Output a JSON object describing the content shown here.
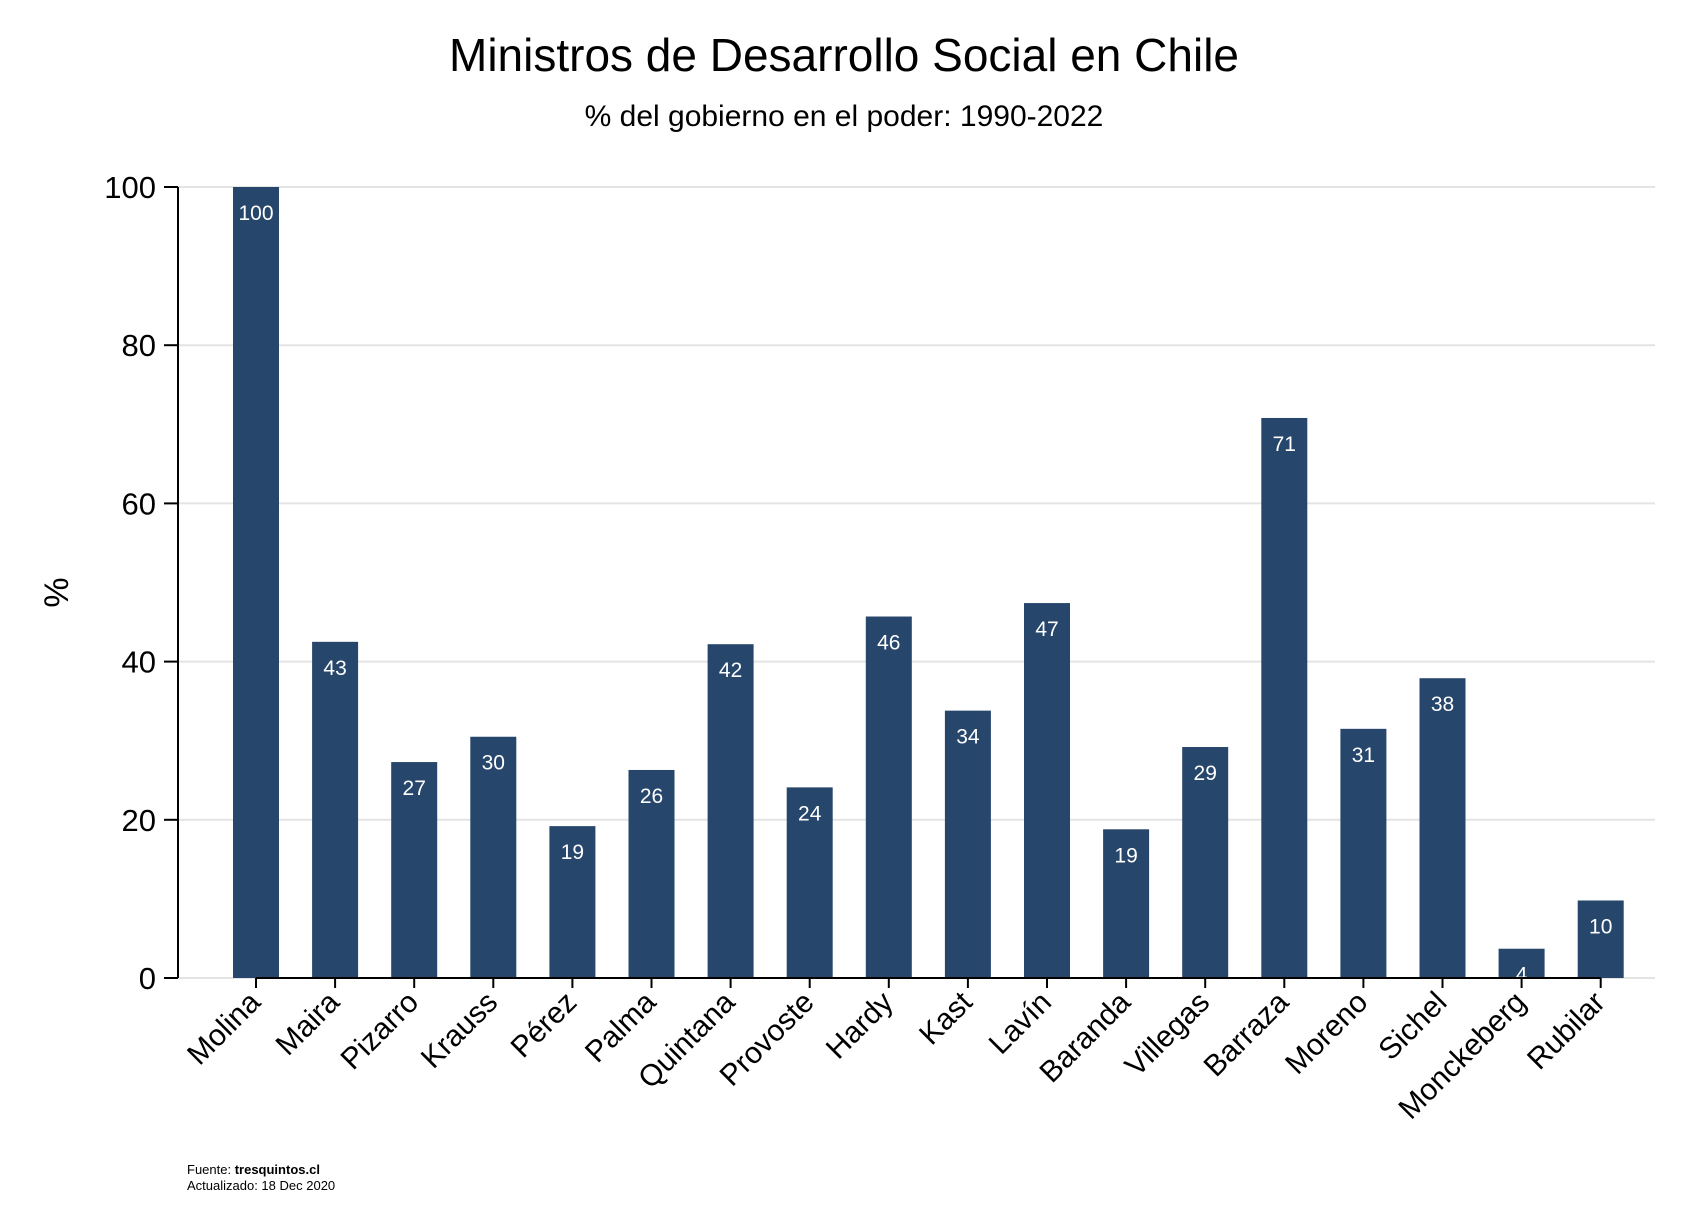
{
  "chart_data": {
    "type": "bar",
    "title": "Ministros de Desarrollo Social en Chile",
    "subtitle": "% del gobierno en el poder: 1990-2022",
    "ylabel": "%",
    "xlabel": "",
    "ylim": [
      0,
      100
    ],
    "yticks": [
      0,
      20,
      40,
      60,
      80,
      100
    ],
    "grid": true,
    "bar_color": "#27466b",
    "categories": [
      "Molina",
      "Maira",
      "Pizarro",
      "Krauss",
      "Pérez",
      "Palma",
      "Quintana",
      "Provoste",
      "Hardy",
      "Kast",
      "Lavín",
      "Baranda",
      "Villegas",
      "Barraza",
      "Moreno",
      "Sichel",
      "Monckeberg",
      "Rubilar"
    ],
    "values": [
      100,
      42.5,
      27.3,
      30.5,
      19.2,
      26.3,
      42.2,
      24.1,
      45.7,
      33.8,
      47.4,
      18.8,
      29.2,
      70.8,
      31.5,
      37.9,
      3.7,
      9.8
    ],
    "data_labels": [
      "100",
      "43",
      "27",
      "30",
      "19",
      "26",
      "42",
      "24",
      "46",
      "34",
      "47",
      "19",
      "29",
      "71",
      "31",
      "38",
      "4",
      "10"
    ]
  },
  "footer": {
    "source_prefix": "Fuente: ",
    "source_name": "tresquintos.cl",
    "updated": "Actualizado: 18 Dec 2020"
  }
}
